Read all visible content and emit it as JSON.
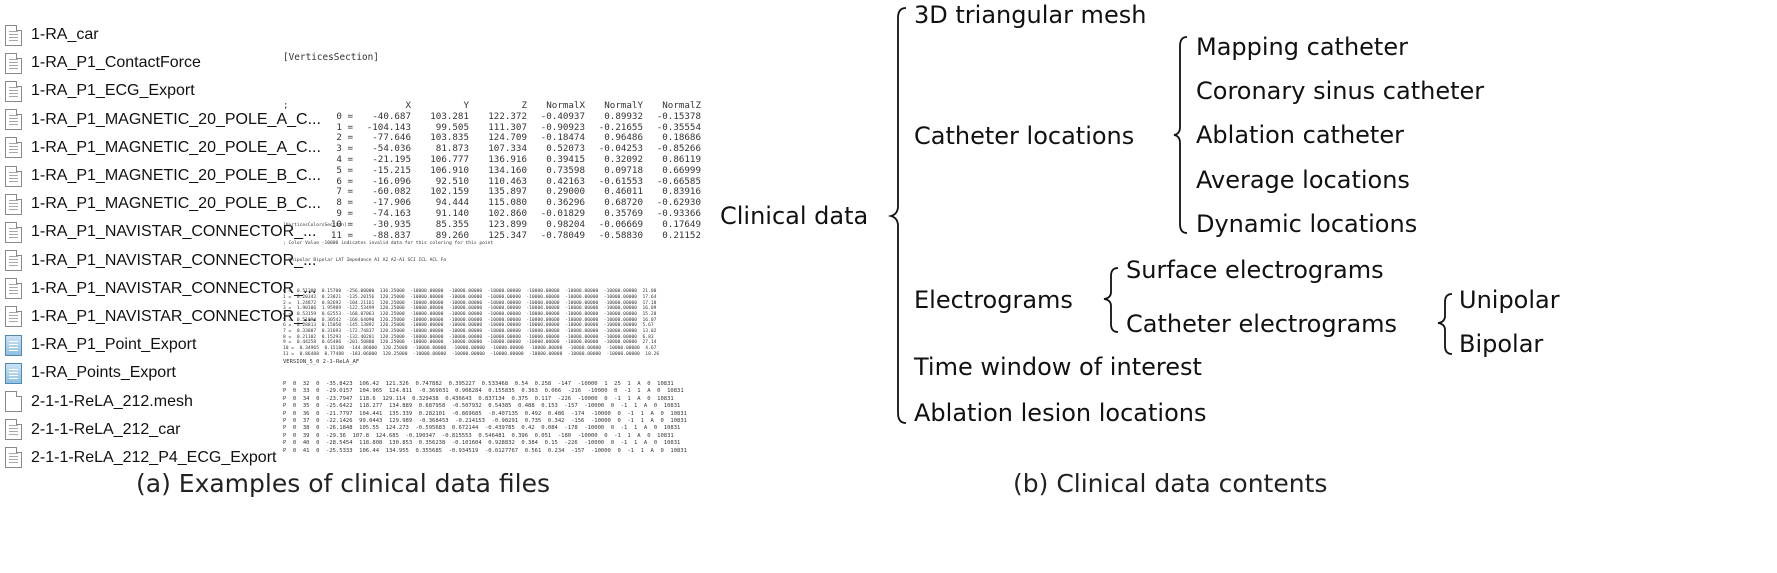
{
  "left_panel": {
    "files": [
      {
        "name": "1-RA_car",
        "icon": "text-file-icon"
      },
      {
        "name": "1-RA_P1_ContactForce",
        "icon": "text-file-icon"
      },
      {
        "name": "1-RA_P1_ECG_Export",
        "icon": "text-file-icon"
      },
      {
        "name": "1-RA_P1_MAGNETIC_20_POLE_A_C...",
        "icon": "text-file-icon"
      },
      {
        "name": "1-RA_P1_MAGNETIC_20_POLE_A_C...",
        "icon": "text-file-icon"
      },
      {
        "name": "1-RA_P1_MAGNETIC_20_POLE_B_C...",
        "icon": "text-file-icon"
      },
      {
        "name": "1-RA_P1_MAGNETIC_20_POLE_B_C...",
        "icon": "text-file-icon"
      },
      {
        "name": "1-RA_P1_NAVISTAR_CONNECTOR_...",
        "icon": "text-file-icon"
      },
      {
        "name": "1-RA_P1_NAVISTAR_CONNECTOR_...",
        "icon": "text-file-icon"
      },
      {
        "name": "1-RA_P1_NAVISTAR_CONNECTOR_...",
        "icon": "text-file-icon"
      },
      {
        "name": "1-RA_P1_NAVISTAR_CONNECTOR_...",
        "icon": "text-file-icon"
      },
      {
        "name": "1-RA_P1_Point_Export",
        "icon": "spreadsheet-file-icon"
      },
      {
        "name": "1-RA_Points_Export",
        "icon": "spreadsheet-file-icon"
      },
      {
        "name": "2-1-1-ReLA_212.mesh",
        "icon": "blank-file-icon"
      },
      {
        "name": "2-1-1-ReLA_212_car",
        "icon": "text-file-icon"
      },
      {
        "name": "2-1-1-ReLA_212_P4_ECG_Export",
        "icon": "text-file-icon"
      }
    ],
    "vertices": {
      "section": "[VerticesSection]",
      "columns": [
        ";",
        "X",
        "Y",
        "Z",
        "NormalX",
        "NormalY",
        "NormalZ"
      ],
      "rows": [
        [
          "0 =",
          "-40.687",
          "103.281",
          "122.372",
          "-0.40937",
          "0.89932",
          "-0.15378"
        ],
        [
          "1 =",
          "-104.143",
          "99.505",
          "111.307",
          "-0.90923",
          "-0.21655",
          "-0.35554"
        ],
        [
          "2 =",
          "-77.646",
          "103.835",
          "124.709",
          "-0.18474",
          "0.96486",
          "0.18686"
        ],
        [
          "3 =",
          "-54.036",
          "81.873",
          "107.334",
          "0.52073",
          "-0.04253",
          "-0.85266"
        ],
        [
          "4 =",
          "-21.195",
          "106.777",
          "136.916",
          "0.39415",
          "0.32092",
          "0.86119"
        ],
        [
          "5 =",
          "-15.215",
          "106.910",
          "134.160",
          "0.73598",
          "0.09718",
          "0.66999"
        ],
        [
          "6 =",
          "-16.096",
          "92.510",
          "110.463",
          "0.42163",
          "-0.61553",
          "-0.66585"
        ],
        [
          "7 =",
          "-60.082",
          "102.159",
          "135.897",
          "0.29000",
          "0.46011",
          "0.83916"
        ],
        [
          "8 =",
          "-17.906",
          "94.444",
          "115.080",
          "0.36296",
          "0.68720",
          "-0.62930"
        ],
        [
          "9 =",
          "-74.163",
          "91.140",
          "102.860",
          "-0.01829",
          "0.35769",
          "-0.93366"
        ],
        [
          "10 =",
          "-30.935",
          "85.355",
          "123.899",
          "0.98204",
          "-0.06669",
          "0.17649"
        ],
        [
          "11 =",
          "-88.837",
          "89.260",
          "125.347",
          "-0.78049",
          "-0.58830",
          "0.21152"
        ]
      ]
    },
    "vertices_colors": {
      "section": "[VerticesColorsSection]",
      "comment": "; Color Value -10000 indicates invalid data for this coloring for this point",
      "columns": "; Unipolar Bipolar LAT Impedance A1 A2 A2-A1 SCI ICL ACL Fo",
      "rows": [
        "0 =  0.51300  0.15700  -256.00000  136.25000  -10000.00000  -10000.00000  -10000.00000  -10000.00000  -10000.00000  -10000.00000  21.00",
        "1 =  0.20342  0.23821  -135.20156  120.25000  -10000.00000  -10000.00000  -10000.00000  -10000.00000  -10000.00000  -10000.00000  17.64",
        "2 =  1.24872  0.82692  -104.21161  120.25000  -10000.00000  -10000.00000  -10000.00000  -10000.00000  -10000.00000  -10000.00000  17.18",
        "3 =  1.90106  1.95989  -122.53499  120.25000  -10000.00000  -10000.00000  -10000.00000  -10000.00000  -10000.00000  -10000.00000  16.09",
        "4 =  0.53159  0.62553  -168.07063  120.25000  -10000.00000  -10000.00000  -10000.00000  -10000.00000  -10000.00000  -10000.00000  15.28",
        "5 =  0.51894  0.30542  -168.64090  120.25000  -10000.00000  -10000.00000  -10000.00000  -10000.00000  -10000.00000  -10000.00000  16.07",
        "6 =  0.28813  0.15050  -145.13892  120.25000  -10000.00000  -10000.00000  -10000.00000  -10000.00000  -10000.00000  -10000.00000  5.67",
        "7 =  0.33807  0.31693  -172.74837  120.25000  -10000.00000  -10000.00000  -10000.00000  -10000.00000  -10000.00000  -10000.00000  13.02",
        "8 =  0.21102  0.15293  -132.40201  120.25000  -10000.00000  -10000.00000  -10000.00000  -10000.00000  -10000.00000  -10000.00000  6.83",
        "9 =  0.44258  0.65486  -201.50880  120.25000  -10000.00000  -10000.00000  -10000.00000  -10000.00000  -10000.00000  -10000.00000  27.14",
        "10 =  0.34965  0.15180  -144.86000  120.25000  -10000.00000  -10000.00000  -10000.00000  -10000.00000  -10000.00000  -10000.00000  4.67",
        "11 =  0.86488  0.77488  -183.06000  120.25000  -10000.00000  -10000.00000  -10000.00000  -10000.00000  -10000.00000  -10000.00000  18.26"
      ]
    },
    "points": {
      "header": "VERSION_5_0 2-1-ReLA_AF",
      "rows": [
        "P  0  32  0  -35.8423  106.42  121.326  0.747882  0.395227  0.533468  0.54  0.258  -147  -10000  1  25  1  A  0  10831",
        "P  0  33  0  -29.0157  104.965  124.811  -0.369031  0.908284  0.155835  0.363  0.066  -216  -10000  0  -1  1  A  0  10831",
        "P  0  34  0  -23.7947  118.6  129.114  0.329438  0.436643  0.837134  0.375  0.117  -226  -10000  0  -1  1  A  0  10831",
        "P  0  35  0  -25.6422  118.277  134.889  0.687958  -0.507932  0.54385  0.488  0.153  -157  -10000  0  -1  1  A  0  10831",
        "P  0  36  0  -21.7797  104.441  135.339  0.282101  -0.869685  -0.407135  0.492  0.486  -174  -10000  0  -1  1  A  0  10831",
        "P  0  37  0  -22.1426  99.0443  129.989  -0.368453  -0.214153  -0.90291  0.735  0.342  -156  -10000  0  -1  1  A  0  10831",
        "P  0  38  0  -26.1848  105.55  124.273  -0.595683  0.672144  -0.439785  0.42  0.084  -178  -10000  0  -1  1  A  0  10831",
        "P  0  39  0  -29.36  107.8  124.685  -0.190347  -0.815553  0.546481  0.396  0.051  -180  -10000  0  -1  1  A  0  10831",
        "P  0  40  0  -28.5454  118.808  130.853  0.356238  -0.101604  0.928832  0.384  0.15  -226  -10000  0  -1  1  A  0  10831",
        "P  0  41  0  -25.5333  106.44  134.955  0.355685  -0.934519  -0.0127767  0.561  0.234  -157  -10000  0  -1  1  A  0  10831"
      ]
    },
    "caption": "(a) Examples of clinical data files"
  },
  "right_panel": {
    "root": "Clinical data",
    "children": [
      {
        "label": "3D triangular mesh"
      },
      {
        "label": "Catheter locations",
        "children": [
          "Mapping catheter",
          "Coronary sinus catheter",
          "Ablation catheter",
          "Average locations",
          "Dynamic locations"
        ]
      },
      {
        "label": "Electrograms",
        "children": [
          {
            "label": "Surface electrograms"
          },
          {
            "label": "Catheter electrograms",
            "children": [
              "Unipolar",
              "Bipolar"
            ]
          }
        ]
      },
      {
        "label": "Time window of interest"
      },
      {
        "label": "Ablation lesion locations"
      }
    ],
    "caption": "(b) Clinical data contents"
  }
}
